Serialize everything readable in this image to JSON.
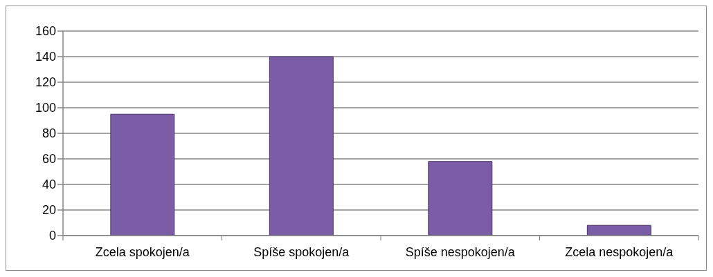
{
  "chart_data": {
    "type": "bar",
    "categories": [
      "Zcela spokojen/a",
      "Spíše spokojen/a",
      "Spíše nespokojen/a",
      "Zcela nespokojen/a"
    ],
    "values": [
      95,
      140,
      58,
      8
    ],
    "color": "#7b5ca6",
    "ylim": [
      0,
      160
    ],
    "yticks": [
      0,
      20,
      40,
      60,
      80,
      100,
      120,
      140,
      160
    ],
    "grid": "y"
  }
}
